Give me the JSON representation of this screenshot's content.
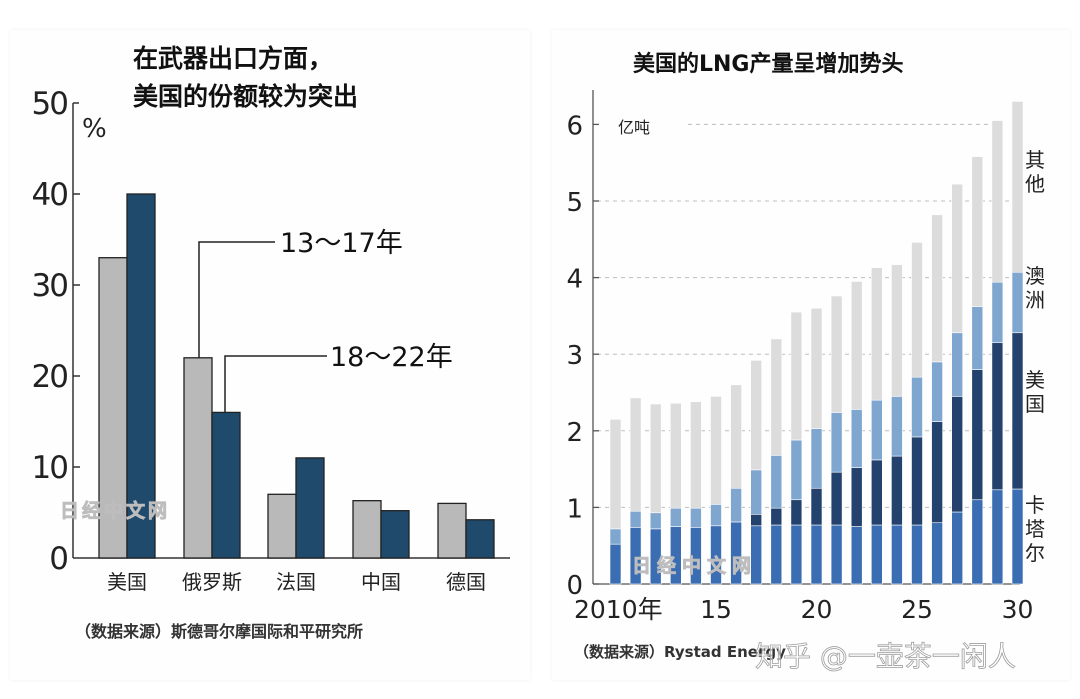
{
  "left": {
    "title_line1": "在武器出口方面，",
    "title_line2": "美国的份额较为突出",
    "unit": "%",
    "source": "（数据来源）斯德哥尔摩国际和平研究所",
    "watermark": "日经中文网",
    "colors": {
      "period1": "#b9b9b9",
      "period2": "#1f4a6b",
      "axis": "#333333"
    }
  },
  "right": {
    "title": "美国的LNG产量呈增加势头",
    "unit": "亿吨",
    "source_prefix": "（数据来源）Rystad Energy",
    "watermark": "日经中文网",
    "colors": {
      "other": "#dcdcdc",
      "australia": "#7fa6cf",
      "usa": "#23426e",
      "qatar": "#3b6db3"
    }
  },
  "overlay_watermark": "知乎 @一壶茶一闲人",
  "chart_data": [
    {
      "type": "bar",
      "title": "在武器出口方面，美国的份额较为突出",
      "xlabel": "",
      "ylabel": "%",
      "ylim": [
        0,
        50
      ],
      "yticks": [
        "0",
        "10",
        "20",
        "30",
        "40",
        "50"
      ],
      "categories": [
        "美国",
        "俄罗斯",
        "法国",
        "中国",
        "德国"
      ],
      "series": [
        {
          "name": "13～17年",
          "values": [
            33,
            22,
            7,
            6.3,
            6
          ]
        },
        {
          "name": "18～22年",
          "values": [
            40,
            16,
            11,
            5.2,
            4.2
          ]
        }
      ],
      "legend": "callout-top-center",
      "grid": false
    },
    {
      "type": "bar",
      "stacked": true,
      "title": "美国的LNG产量呈增加势头",
      "xlabel": "",
      "ylabel": "亿吨",
      "ylim": [
        0,
        6.5
      ],
      "yticks": [
        "0",
        "1",
        "2",
        "3",
        "4",
        "5",
        "6"
      ],
      "x": [
        2010,
        2011,
        2012,
        2013,
        2014,
        2015,
        2016,
        2017,
        2018,
        2019,
        2020,
        2021,
        2022,
        2023,
        2024,
        2025,
        2026,
        2027,
        2028,
        2029,
        2030
      ],
      "xtick_labels": [
        "2010年",
        "15",
        "20",
        "25",
        "30"
      ],
      "xtick_values": [
        2010,
        2015,
        2020,
        2025,
        2030
      ],
      "series": [
        {
          "name": "卡塔尔",
          "values": [
            0.52,
            0.74,
            0.72,
            0.75,
            0.74,
            0.76,
            0.81,
            0.76,
            0.77,
            0.77,
            0.77,
            0.77,
            0.75,
            0.77,
            0.77,
            0.77,
            0.8,
            0.94,
            1.1,
            1.23,
            1.24
          ]
        },
        {
          "name": "美国",
          "values": [
            0,
            0,
            0,
            0,
            0,
            0,
            0,
            0.15,
            0.22,
            0.33,
            0.48,
            0.69,
            0.77,
            0.85,
            0.9,
            1.15,
            1.32,
            1.51,
            1.7,
            1.92,
            2.04
          ]
        },
        {
          "name": "澳洲",
          "values": [
            0.2,
            0.21,
            0.21,
            0.24,
            0.25,
            0.28,
            0.44,
            0.58,
            0.69,
            0.78,
            0.78,
            0.78,
            0.76,
            0.78,
            0.78,
            0.78,
            0.78,
            0.83,
            0.82,
            0.79,
            0.79
          ]
        },
        {
          "name": "其他",
          "values": [
            1.43,
            1.48,
            1.42,
            1.37,
            1.39,
            1.41,
            1.35,
            1.43,
            1.52,
            1.67,
            1.57,
            1.52,
            1.67,
            1.73,
            1.72,
            1.76,
            1.92,
            1.94,
            1.96,
            2.11,
            2.23
          ]
        }
      ],
      "legend": "right-side-labels",
      "grid": true
    }
  ]
}
